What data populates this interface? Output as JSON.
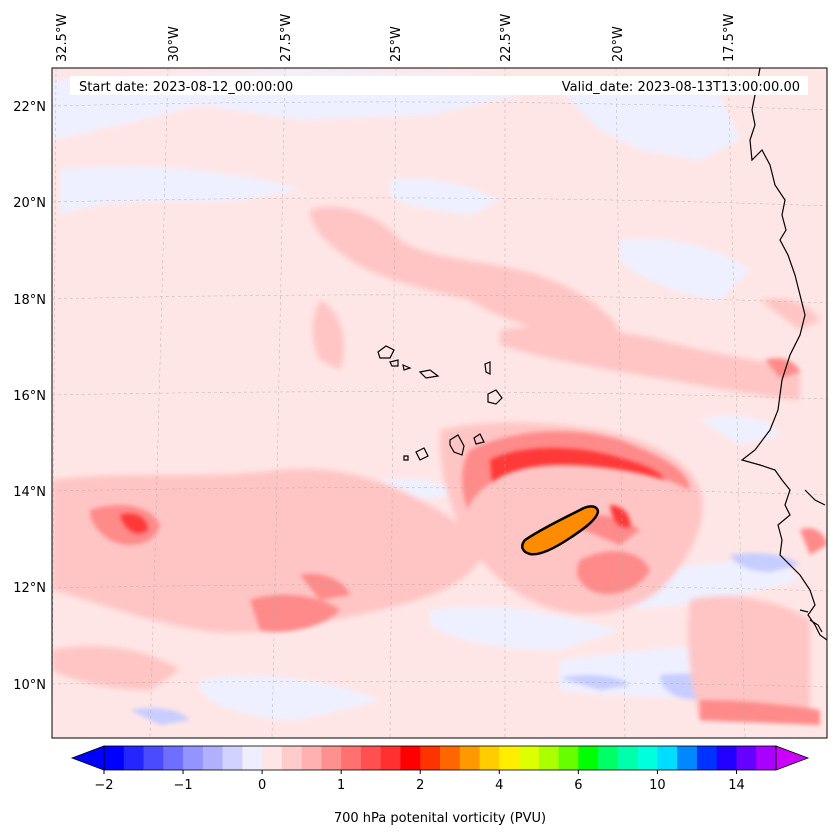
{
  "header": {
    "start_date": "Start date: 2023-08-12_00:00:00",
    "valid_date": "Valid_date: 2023-08-13T13:00:00.00"
  },
  "map": {
    "lon_labels": [
      "32.5°W",
      "30°W",
      "27.5°W",
      "25°W",
      "22.5°W",
      "20°W",
      "17.5°W"
    ],
    "lat_labels": [
      "22°N",
      "20°N",
      "18°N",
      "16°N",
      "14°N",
      "12°N",
      "10°N"
    ],
    "lon_range": [
      -33,
      -15.5
    ],
    "lat_range": [
      8.9,
      22.8
    ],
    "gridlines": true,
    "colors": {
      "background_field": "#ffe6e6",
      "light_blue": "#eef0ff",
      "pink": "#ffb3b3",
      "red": "#ff7070",
      "strong_red": "#ff3030",
      "orange": "#ff8c00",
      "coast": "#000000"
    }
  },
  "colorbar": {
    "title": "700 hPa potenital vorticity (PVU)",
    "tick_labels": [
      "−2",
      "−1",
      "0",
      "1",
      "2",
      "4",
      "6",
      "10",
      "14"
    ],
    "colors": [
      "#0000ff",
      "#2525ff",
      "#4a4aff",
      "#6f6fff",
      "#9494ff",
      "#b0b0ff",
      "#d2d2ff",
      "#eeeeff",
      "#ffe6e6",
      "#ffcccc",
      "#ffb0b0",
      "#ff9090",
      "#ff7070",
      "#ff5050",
      "#ff3030",
      "#ff0000",
      "#ff3300",
      "#ff6600",
      "#ff9900",
      "#ffcc00",
      "#ffee00",
      "#ddff00",
      "#aaff00",
      "#66ff00",
      "#00ff00",
      "#00ff66",
      "#00ffaa",
      "#00ffdd",
      "#00ddff",
      "#0088ff",
      "#0033ff",
      "#2200ff",
      "#6600ff",
      "#aa00ff"
    ],
    "extend_low": "#0000ff",
    "extend_high": "#cc00ff"
  }
}
